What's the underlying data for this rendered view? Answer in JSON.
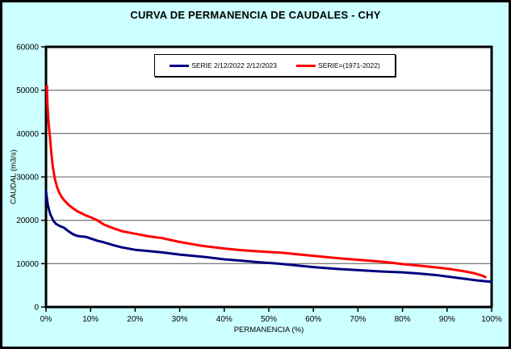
{
  "chart_data": {
    "type": "line",
    "title": "CURVA DE PERMANENCIA DE CAUDALES - CHY",
    "xlabel": "PERMANENCIA (%)",
    "ylabel": "CAUDAL (m3/s)",
    "xlim": [
      0,
      100
    ],
    "ylim": [
      0,
      60000
    ],
    "x_ticks": [
      0,
      10,
      20,
      30,
      40,
      50,
      60,
      70,
      80,
      90,
      100
    ],
    "x_tick_labels": [
      "0%",
      "10%",
      "20%",
      "30%",
      "40%",
      "50%",
      "60%",
      "70%",
      "80%",
      "90%",
      "100%"
    ],
    "y_ticks": [
      0,
      10000,
      20000,
      30000,
      40000,
      50000,
      60000
    ],
    "y_tick_labels": [
      "0",
      "10000",
      "20000",
      "30000",
      "40000",
      "50000",
      "60000"
    ],
    "grid": "horizontal-only",
    "legend_position": "top-center-inside",
    "colors": {
      "background": "#CCFFFF",
      "plot_background": "#FFFFFF",
      "gridline": "#808080",
      "border": "#000000"
    },
    "series": [
      {
        "name": "SERIE 2/12/2022 2/12/2023",
        "color": "#000080",
        "points": [
          [
            0,
            26800
          ],
          [
            0.15,
            25500
          ],
          [
            0.4,
            23600
          ],
          [
            0.7,
            22300
          ],
          [
            1.0,
            21300
          ],
          [
            1.3,
            20700
          ],
          [
            1.6,
            20000
          ],
          [
            2.2,
            19200
          ],
          [
            3,
            18700
          ],
          [
            4,
            18300
          ],
          [
            5,
            17500
          ],
          [
            6,
            16800
          ],
          [
            7,
            16400
          ],
          [
            8,
            16250
          ],
          [
            9,
            16150
          ],
          [
            10,
            15800
          ],
          [
            11.5,
            15300
          ],
          [
            13,
            14900
          ],
          [
            15,
            14300
          ],
          [
            17,
            13750
          ],
          [
            20,
            13200
          ],
          [
            23,
            12900
          ],
          [
            26,
            12600
          ],
          [
            30,
            12100
          ],
          [
            35,
            11600
          ],
          [
            40,
            11000
          ],
          [
            44,
            10650
          ],
          [
            48,
            10300
          ],
          [
            52,
            10000
          ],
          [
            55,
            9700
          ],
          [
            60,
            9200
          ],
          [
            65,
            8800
          ],
          [
            70,
            8500
          ],
          [
            75,
            8200
          ],
          [
            80,
            8000
          ],
          [
            84,
            7700
          ],
          [
            88,
            7300
          ],
          [
            91,
            6900
          ],
          [
            94,
            6500
          ],
          [
            97,
            6100
          ],
          [
            100,
            5800
          ]
        ]
      },
      {
        "name": "SERIE=(1971-2022)",
        "color": "#FF0000",
        "points": [
          [
            0.2,
            51000
          ],
          [
            0.3,
            47000
          ],
          [
            0.5,
            43500
          ],
          [
            0.7,
            41000
          ],
          [
            0.9,
            39000
          ],
          [
            1.2,
            35500
          ],
          [
            1.5,
            32500
          ],
          [
            2,
            29500
          ],
          [
            2.5,
            27600
          ],
          [
            3,
            26300
          ],
          [
            3.5,
            25400
          ],
          [
            4,
            24700
          ],
          [
            5,
            23600
          ],
          [
            6,
            22800
          ],
          [
            7,
            22100
          ],
          [
            8,
            21600
          ],
          [
            9,
            21100
          ],
          [
            10,
            20700
          ],
          [
            11.5,
            20000
          ],
          [
            13,
            19000
          ],
          [
            15,
            18200
          ],
          [
            17,
            17500
          ],
          [
            20,
            16900
          ],
          [
            23,
            16300
          ],
          [
            26,
            15900
          ],
          [
            30,
            15000
          ],
          [
            35,
            14100
          ],
          [
            40,
            13500
          ],
          [
            44,
            13100
          ],
          [
            48,
            12800
          ],
          [
            53,
            12500
          ],
          [
            58,
            12000
          ],
          [
            62,
            11600
          ],
          [
            66,
            11200
          ],
          [
            71,
            10800
          ],
          [
            76,
            10400
          ],
          [
            80,
            9900
          ],
          [
            84,
            9500
          ],
          [
            88,
            9100
          ],
          [
            91,
            8700
          ],
          [
            94,
            8200
          ],
          [
            96,
            7800
          ],
          [
            98,
            7200
          ],
          [
            98.6,
            6900
          ]
        ]
      }
    ]
  }
}
